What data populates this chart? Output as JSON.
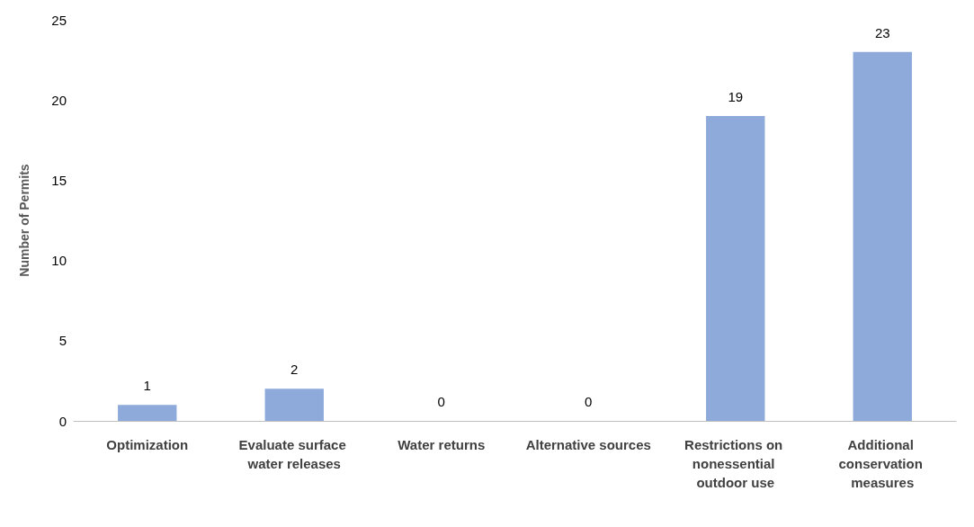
{
  "chart_data": {
    "type": "bar",
    "ylabel": "Number of Permits",
    "categories": [
      "Optimization",
      "Evaluate surface water releases",
      "Water returns",
      "Alternative sources",
      "Restrictions on nonessential outdoor use",
      "Additional conservation measures"
    ],
    "values": [
      1,
      2,
      0,
      0,
      19,
      23
    ],
    "color": "#8eaadb",
    "ylim": [
      0,
      25
    ],
    "yticks": [
      0,
      5,
      10,
      15,
      20,
      25
    ],
    "grid": false,
    "data_labels": true
  }
}
